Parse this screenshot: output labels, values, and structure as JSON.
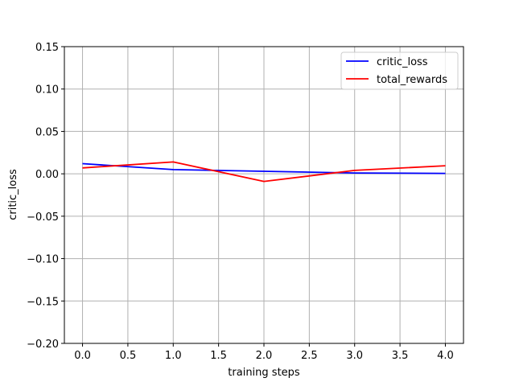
{
  "chart_data": {
    "type": "line",
    "x": [
      0,
      1,
      2,
      3,
      4
    ],
    "series": [
      {
        "name": "critic_loss",
        "values": [
          0.012,
          0.005,
          0.003,
          0.001,
          0.0005
        ],
        "color": "#0000ff"
      },
      {
        "name": "total_rewards",
        "values": [
          0.007,
          0.014,
          -0.009,
          0.004,
          0.0095
        ],
        "color": "#ff0000"
      }
    ],
    "xlabel": "training steps",
    "ylabel": "critic_loss",
    "xlim": [
      -0.2,
      4.2
    ],
    "ylim": [
      -0.2,
      0.15
    ],
    "xticks": [
      0,
      0.5,
      1,
      1.5,
      2,
      2.5,
      3,
      3.5,
      4
    ],
    "xtick_labels": [
      "0.0",
      "0.5",
      "1.0",
      "1.5",
      "2.0",
      "2.5",
      "3.0",
      "3.5",
      "4.0"
    ],
    "yticks": [
      -0.2,
      -0.15,
      -0.1,
      -0.05,
      0,
      0.05,
      0.1,
      0.15
    ],
    "ytick_labels": [
      "−0.20",
      "−0.15",
      "−0.10",
      "−0.05",
      "0.00",
      "0.05",
      "0.10",
      "0.15"
    ],
    "grid": true,
    "grid_color": "#b0b0b0",
    "legend_position": "top-right"
  }
}
